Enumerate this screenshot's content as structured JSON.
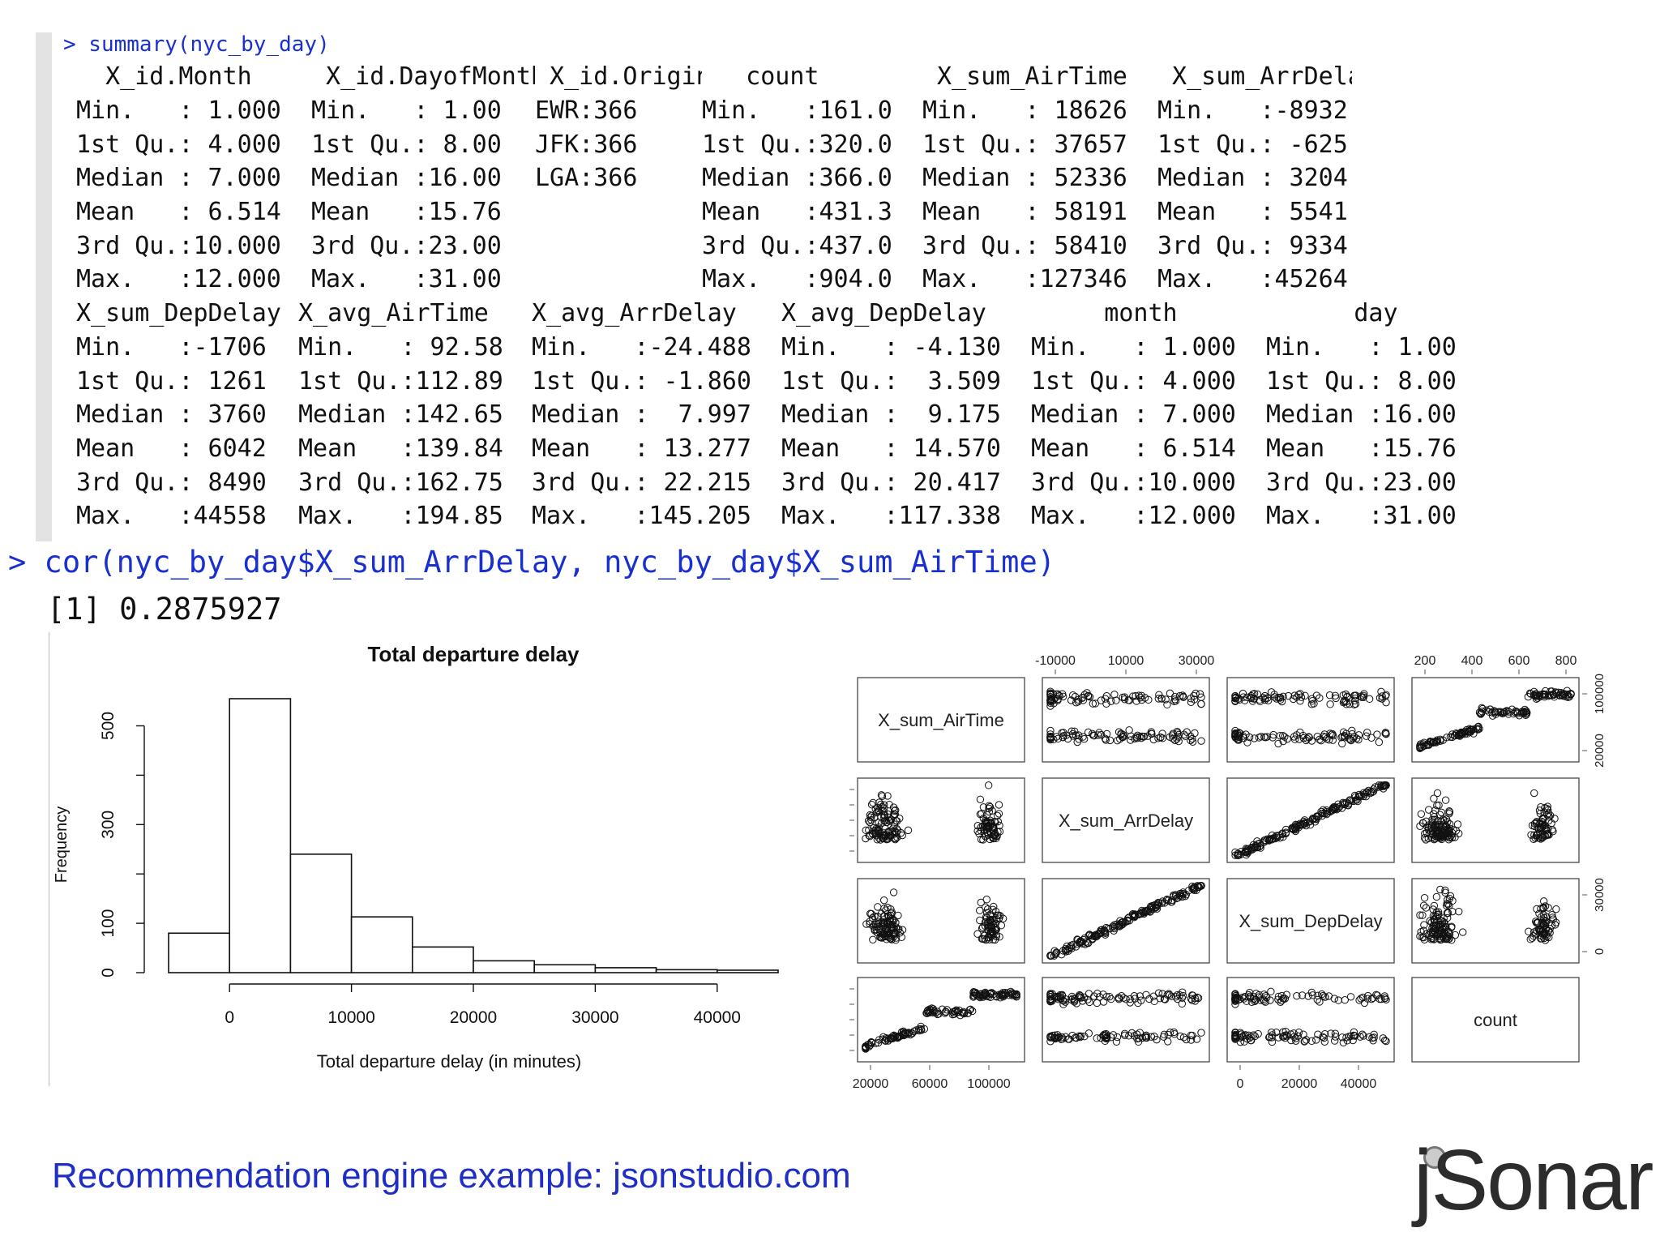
{
  "console": {
    "cmd_summary": "> summary(nyc_by_day)",
    "cmd_cor": "> cor(nyc_by_day$X_sum_ArrDelay, nyc_by_day$X_sum_AirTime)",
    "cor_result": "[1] 0.2875927",
    "summary_block1": [
      [
        "  X_id.Month     ",
        " X_id.DayofMonth",
        " X_id.Origin  ",
        "   count      ",
        " X_sum_AirTime ",
        " X_sum_ArrDelay"
      ],
      [
        "Min.   : 1.000  ",
        "Min.   : 1.00  ",
        "EWR:366       ",
        "Min.   :161.0 ",
        "Min.   : 18626 ",
        "Min.   :-8932"
      ],
      [
        "1st Qu.: 4.000  ",
        "1st Qu.: 8.00  ",
        "JFK:366       ",
        "1st Qu.:320.0 ",
        "1st Qu.: 37657 ",
        "1st Qu.: -625"
      ],
      [
        "Median : 7.000  ",
        "Median :16.00  ",
        "LGA:366       ",
        "Median :366.0 ",
        "Median : 52336 ",
        "Median : 3204"
      ],
      [
        "Mean   : 6.514  ",
        "Mean   :15.76  ",
        "              ",
        "Mean   :431.3 ",
        "Mean   : 58191 ",
        "Mean   : 5541"
      ],
      [
        "3rd Qu.:10.000  ",
        "3rd Qu.:23.00  ",
        "              ",
        "3rd Qu.:437.0 ",
        "3rd Qu.: 58410 ",
        "3rd Qu.: 9334"
      ],
      [
        "Max.   :12.000  ",
        "Max.   :31.00  ",
        "              ",
        "Max.   :904.0 ",
        "Max.   :127346 ",
        "Max.   :45264"
      ]
    ],
    "summary_block2": [
      [
        "X_sum_DepDelay ",
        "X_avg_AirTime  ",
        "X_avg_ArrDelay  ",
        "X_avg_DepDelay   ",
        "     month      ",
        "      day     "
      ],
      [
        "Min.   :-1706  ",
        "Min.   : 92.58 ",
        "Min.   :-24.488 ",
        "Min.   : -4.130  ",
        "Min.   : 1.000  ",
        "Min.   : 1.00 "
      ],
      [
        "1st Qu.: 1261  ",
        "1st Qu.:112.89 ",
        "1st Qu.: -1.860 ",
        "1st Qu.:  3.509  ",
        "1st Qu.: 4.000  ",
        "1st Qu.: 8.00 "
      ],
      [
        "Median : 3760  ",
        "Median :142.65 ",
        "Median :  7.997 ",
        "Median :  9.175  ",
        "Median : 7.000  ",
        "Median :16.00 "
      ],
      [
        "Mean   : 6042  ",
        "Mean   :139.84 ",
        "Mean   : 13.277 ",
        "Mean   : 14.570  ",
        "Mean   : 6.514  ",
        "Mean   :15.76 "
      ],
      [
        "3rd Qu.: 8490  ",
        "3rd Qu.:162.75 ",
        "3rd Qu.: 22.215 ",
        "3rd Qu.: 20.417  ",
        "3rd Qu.:10.000  ",
        "3rd Qu.:23.00 "
      ],
      [
        "Max.   :44558  ",
        "Max.   :194.85 ",
        "Max.   :145.205 ",
        "Max.   :117.338  ",
        "Max.   :12.000  ",
        "Max.   :31.00 "
      ]
    ]
  },
  "chart_data": [
    {
      "type": "bar",
      "title": "Total departure delay",
      "xlabel": "Total departure delay (in minutes)",
      "ylabel": "Frequency",
      "bin_edges": [
        -5000,
        0,
        5000,
        10000,
        15000,
        20000,
        25000,
        30000,
        35000,
        40000,
        45000
      ],
      "values": [
        80,
        555,
        240,
        113,
        52,
        24,
        16,
        10,
        6,
        5
      ],
      "xticks": [
        0,
        10000,
        20000,
        30000,
        40000
      ],
      "xtick_labels": [
        "0",
        "10000",
        "20000",
        "30000",
        "40000"
      ],
      "yticks": [
        0,
        100,
        200,
        300,
        400,
        500
      ],
      "ytick_labels": [
        "0",
        "100",
        "",
        "300",
        "",
        "500"
      ],
      "xlim": [
        -5000,
        45000
      ],
      "ylim": [
        0,
        555
      ]
    },
    {
      "type": "scatter",
      "subtype": "pairs-matrix",
      "variables": [
        "X_sum_AirTime",
        "X_sum_ArrDelay",
        "X_sum_DepDelay",
        "count"
      ],
      "diag_labels": [
        "X_sum_AirTime",
        "X_sum_ArrDelay",
        "X_sum_DepDelay",
        "count"
      ],
      "axis_tick_labels": {
        "top_col2": [
          "-10000",
          "10000",
          "30000"
        ],
        "top_col4": [
          "200",
          "400",
          "600",
          "800"
        ],
        "right_row1": [
          "20000",
          "100000"
        ],
        "right_row3": [
          "0",
          "30000"
        ],
        "bottom_col1": [
          "20000",
          "60000",
          "100000"
        ],
        "bottom_col3": [
          "0",
          "20000",
          "40000"
        ]
      }
    }
  ],
  "footer": {
    "link_text": "Recommendation engine example: jsonstudio.com",
    "logo_text": "jSonar"
  },
  "colors": {
    "prompt_blue": "#1a2fd0",
    "footer_blue": "#1f2fc6"
  }
}
